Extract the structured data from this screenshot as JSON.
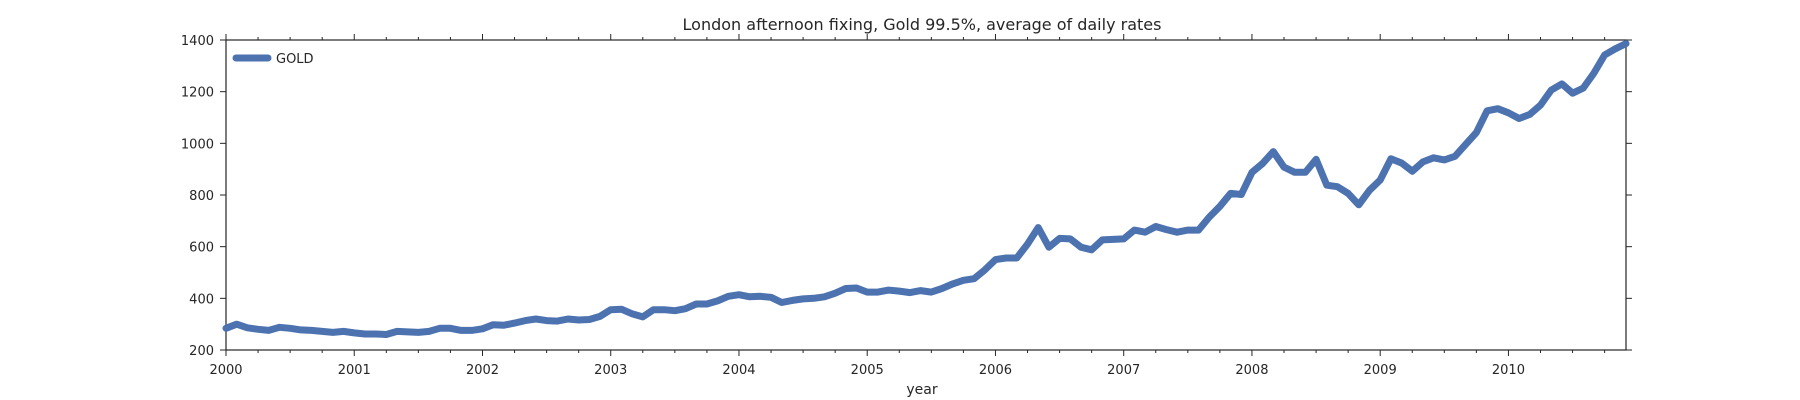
{
  "chart_data": {
    "type": "line",
    "title": "London afternoon fixing, Gold 99.5%, average of daily rates",
    "xlabel": "year",
    "ylabel": "",
    "xlim": [
      2000.0,
      2010.9167
    ],
    "ylim": [
      200,
      1400
    ],
    "x_ticks": [
      "2000",
      "2001",
      "2002",
      "2003",
      "2004",
      "2005",
      "2006",
      "2007",
      "2008",
      "2009",
      "2010"
    ],
    "y_ticks": [
      "200",
      "400",
      "600",
      "800",
      "1000",
      "1200",
      "1400"
    ],
    "grid": false,
    "legend_position": "top-left",
    "series": [
      {
        "name": "GOLD",
        "color": "#4c72b0",
        "x_start": 2000,
        "x_step_months": 1,
        "values": [
          284,
          300,
          286,
          280,
          276,
          288,
          284,
          278,
          276,
          272,
          268,
          272,
          266,
          262,
          262,
          260,
          272,
          270,
          268,
          272,
          284,
          284,
          276,
          276,
          282,
          298,
          296,
          304,
          314,
          320,
          314,
          312,
          320,
          316,
          318,
          330,
          356,
          358,
          340,
          328,
          356,
          356,
          352,
          360,
          378,
          378,
          390,
          408,
          414,
          406,
          408,
          404,
          384,
          392,
          398,
          400,
          406,
          420,
          438,
          440,
          424,
          424,
          432,
          428,
          422,
          430,
          424,
          438,
          456,
          470,
          476,
          510,
          550,
          556,
          556,
          610,
          674,
          598,
          632,
          630,
          598,
          588,
          626,
          628,
          630,
          664,
          656,
          678,
          666,
          656,
          664,
          664,
          714,
          756,
          806,
          802,
          888,
          922,
          968,
          908,
          888,
          888,
          938,
          838,
          832,
          806,
          762,
          818,
          858,
          940,
          924,
          892,
          928,
          944,
          936,
          950,
          996,
          1042,
          1126,
          1134,
          1118,
          1096,
          1112,
          1148,
          1206,
          1230,
          1194,
          1214,
          1272,
          1342,
          1366,
          1386
        ]
      }
    ]
  }
}
